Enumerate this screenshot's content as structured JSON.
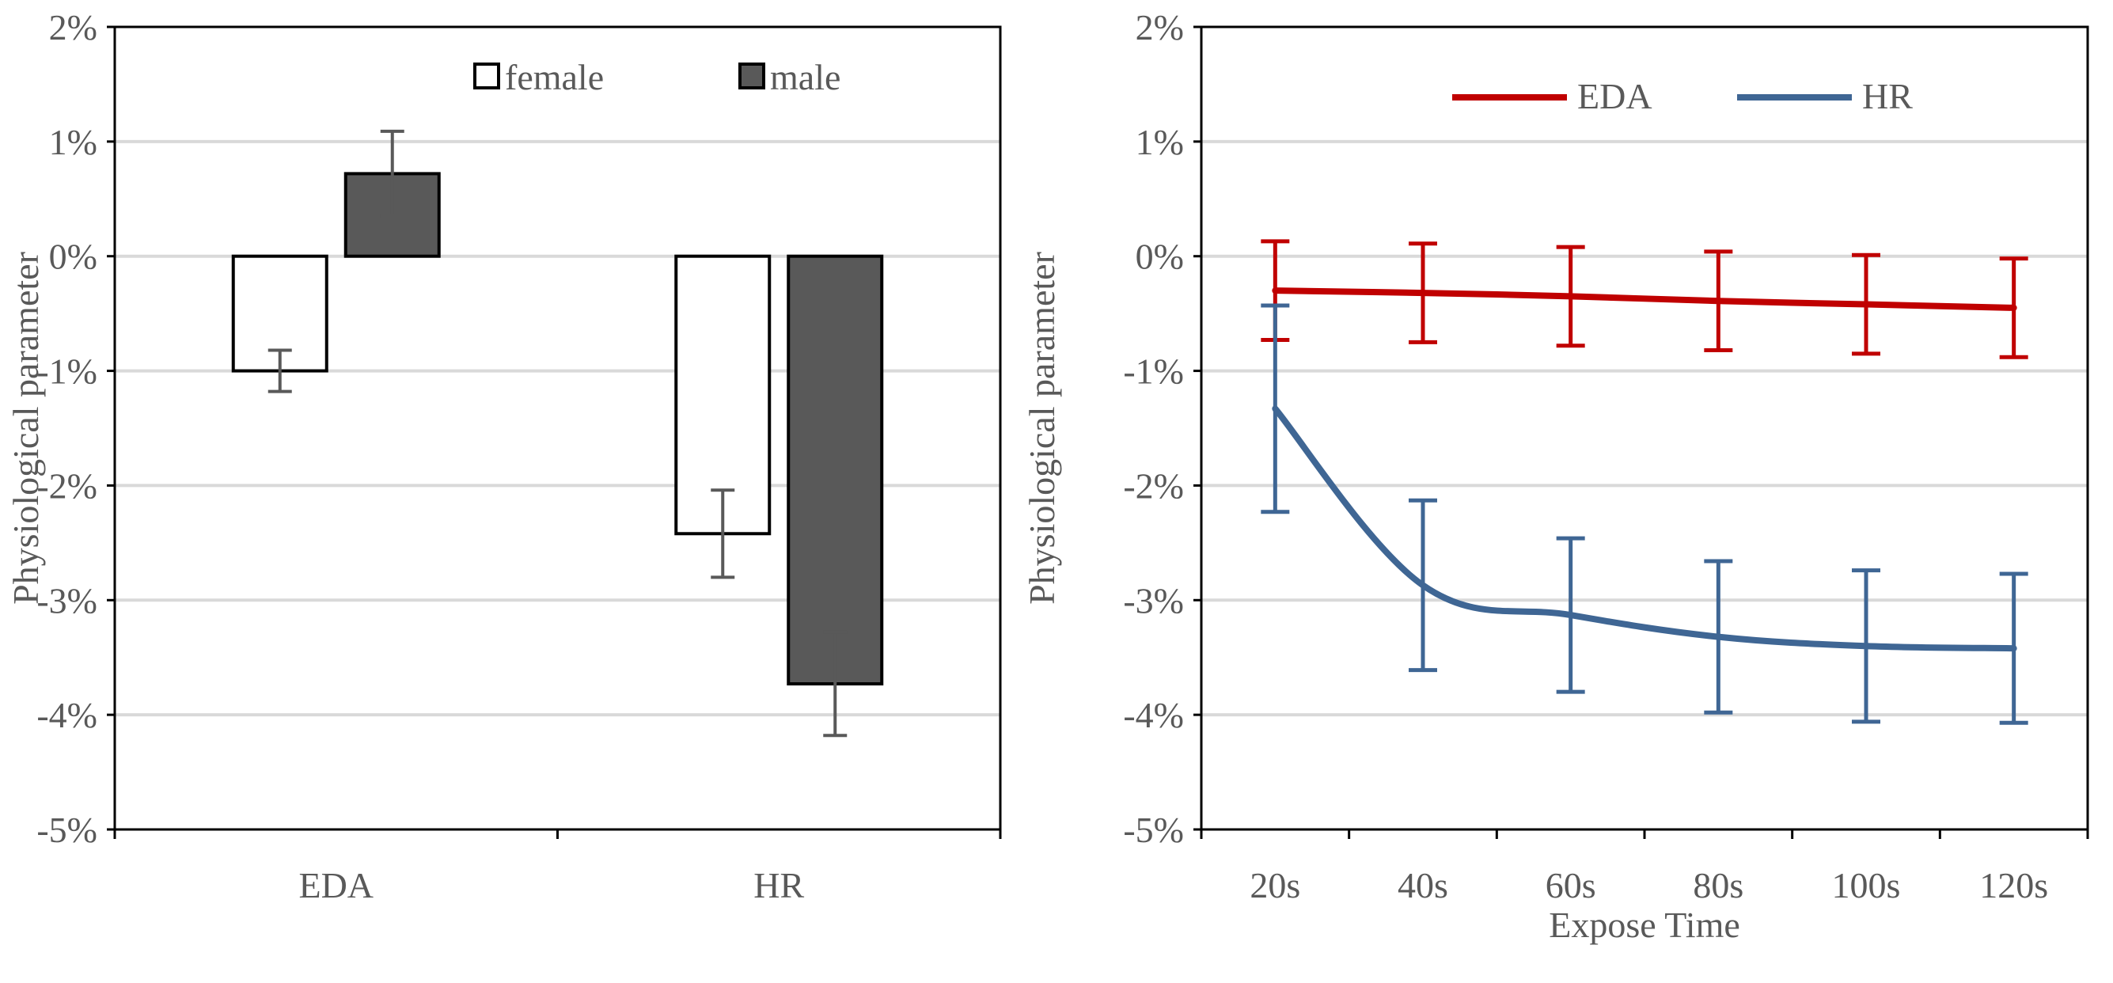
{
  "chart_data": [
    {
      "type": "bar",
      "title": "",
      "xlabel": "",
      "ylabel": "Physiological parameter",
      "categories": [
        "EDA",
        "HR"
      ],
      "ylim": [
        -5,
        2
      ],
      "y_ticks": [
        "2%",
        "1%",
        "0%",
        "-1%",
        "-2%",
        "-3%",
        "-4%",
        "-5%"
      ],
      "grid": true,
      "legend_position": "top-right",
      "series": [
        {
          "name": "female",
          "values": [
            -1.0,
            -2.42
          ],
          "errors": [
            0.18,
            0.38
          ],
          "color": "#ffffff"
        },
        {
          "name": "male",
          "values": [
            0.72,
            -3.73
          ],
          "errors": [
            0.37,
            0.45
          ],
          "color": "#595959"
        }
      ]
    },
    {
      "type": "line",
      "title": "",
      "xlabel": "Expose Time",
      "ylabel": "Physiological parameter",
      "x": [
        "20s",
        "40s",
        "60s",
        "80s",
        "100s",
        "120s"
      ],
      "ylim": [
        -5,
        2
      ],
      "y_ticks": [
        "2%",
        "1%",
        "0%",
        "-1%",
        "-2%",
        "-3%",
        "-4%",
        "-5%"
      ],
      "grid": true,
      "legend_position": "top-right",
      "series": [
        {
          "name": "EDA",
          "values": [
            -0.3,
            -0.32,
            -0.35,
            -0.39,
            -0.42,
            -0.45
          ],
          "errors": [
            0.43,
            0.43,
            0.43,
            0.43,
            0.43,
            0.43
          ],
          "color": "#c00000"
        },
        {
          "name": "HR",
          "values": [
            -1.33,
            -2.87,
            -3.13,
            -3.32,
            -3.4,
            -3.42
          ],
          "errors": [
            0.9,
            0.74,
            0.67,
            0.66,
            0.66,
            0.65
          ],
          "color": "#3f6694"
        }
      ]
    }
  ]
}
